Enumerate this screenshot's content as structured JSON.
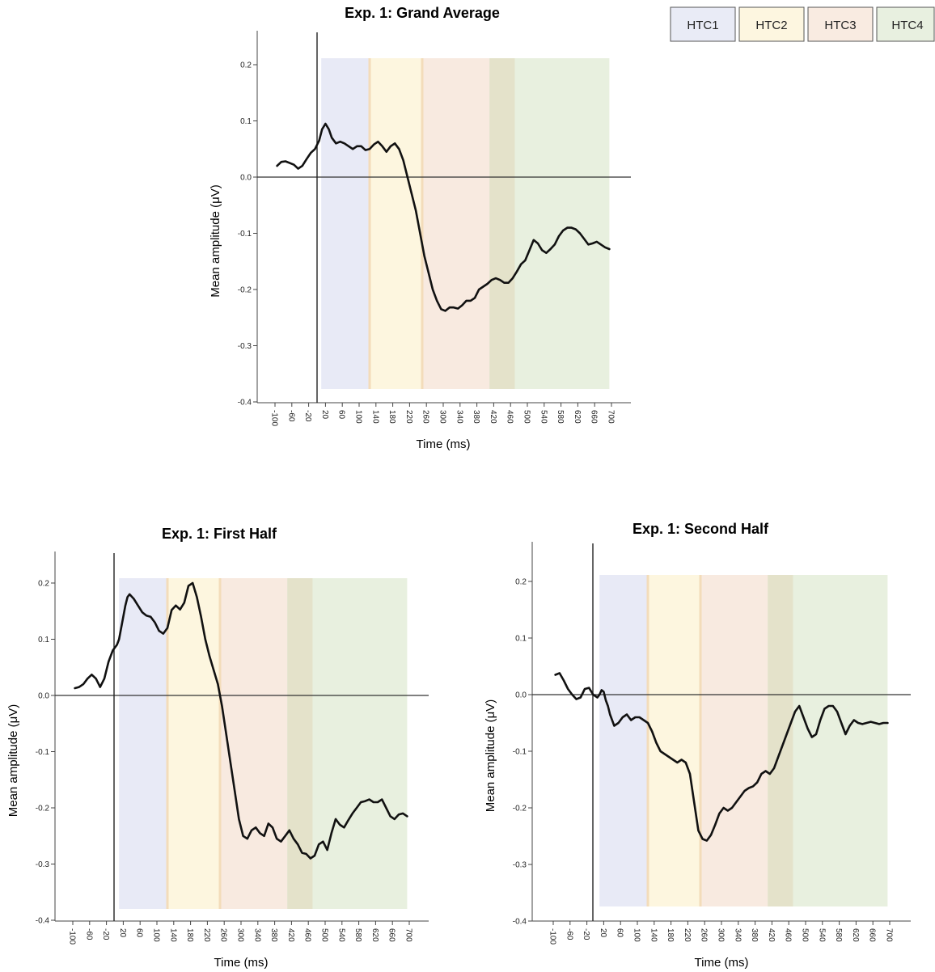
{
  "legend": [
    {
      "label": "HTC1",
      "color": "#e9ebf6"
    },
    {
      "label": "HTC2",
      "color": "#fdf6e0"
    },
    {
      "label": "HTC3",
      "color": "#f9ebe1"
    },
    {
      "label": "HTC4",
      "color": "#e8f0e0"
    }
  ],
  "colors": {
    "HTC1": "#e8eaf6",
    "HTC2": "#fdf6df",
    "HTC3": "#f8eae0",
    "HTC4": "#e8f0df",
    "overlap": "#e4e2ca",
    "boundary": "#f3dcba",
    "line": "#111111"
  },
  "chart_data": [
    {
      "type": "line",
      "title": "Exp. 1: Grand Average",
      "xlabel": "Time (ms)",
      "ylabel": "Mean amplitude (μV)",
      "xlim": [
        -100,
        700
      ],
      "ylim": [
        -0.4,
        0.2
      ],
      "x_ticks": [
        -100,
        -60,
        -20,
        20,
        60,
        100,
        140,
        180,
        220,
        260,
        300,
        340,
        380,
        420,
        460,
        500,
        540,
        580,
        620,
        660,
        700
      ],
      "y_ticks": [
        "-0.4",
        "-0.3",
        "-0.2",
        "-0.1",
        "0.0",
        "0.1",
        "0.2"
      ],
      "windows": [
        {
          "name": "HTC1",
          "start": 10,
          "end": 125
        },
        {
          "name": "HTC2",
          "start": 125,
          "end": 250
        },
        {
          "name": "HTC3",
          "start": 250,
          "end": 410
        },
        {
          "name": "HTC4",
          "start": 410,
          "end": 695
        }
      ],
      "overlap": [
        410,
        470
      ],
      "series": [
        {
          "x": [
            -95,
            -85,
            -75,
            -65,
            -55,
            -45,
            -35,
            -25,
            -15,
            -5,
            5,
            12,
            20,
            28,
            35,
            45,
            55,
            65,
            75,
            85,
            95,
            105,
            115,
            125,
            135,
            145,
            155,
            165,
            175,
            185,
            195,
            205,
            215,
            225,
            235,
            245,
            255,
            265,
            275,
            285,
            295,
            305,
            315,
            325,
            335,
            345,
            355,
            365,
            375,
            385,
            395,
            405,
            415,
            425,
            435,
            445,
            455,
            465,
            475,
            485,
            495,
            505,
            515,
            525,
            535,
            545,
            555,
            565,
            575,
            585,
            595,
            605,
            615,
            625,
            635,
            645,
            655,
            665,
            675,
            685,
            695
          ],
          "y": [
            0.02,
            0.027,
            0.028,
            0.025,
            0.022,
            0.015,
            0.02,
            0.032,
            0.043,
            0.05,
            0.065,
            0.085,
            0.095,
            0.085,
            0.07,
            0.06,
            0.063,
            0.06,
            0.055,
            0.05,
            0.055,
            0.055,
            0.048,
            0.05,
            0.058,
            0.063,
            0.055,
            0.045,
            0.055,
            0.06,
            0.05,
            0.03,
            0.0,
            -0.03,
            -0.06,
            -0.1,
            -0.14,
            -0.17,
            -0.2,
            -0.22,
            -0.235,
            -0.238,
            -0.232,
            -0.232,
            -0.234,
            -0.228,
            -0.22,
            -0.22,
            -0.215,
            -0.2,
            -0.195,
            -0.19,
            -0.183,
            -0.18,
            -0.183,
            -0.188,
            -0.188,
            -0.18,
            -0.168,
            -0.155,
            -0.148,
            -0.13,
            -0.112,
            -0.118,
            -0.13,
            -0.135,
            -0.128,
            -0.12,
            -0.105,
            -0.095,
            -0.09,
            -0.09,
            -0.093,
            -0.1,
            -0.11,
            -0.12,
            -0.118,
            -0.115,
            -0.12,
            -0.125,
            -0.128
          ]
        }
      ]
    },
    {
      "type": "line",
      "title": "Exp. 1: First Half",
      "xlabel": "Time (ms)",
      "ylabel": "Mean amplitude (μV)",
      "xlim": [
        -100,
        700
      ],
      "ylim": [
        -0.4,
        0.2
      ],
      "x_ticks": [
        -100,
        -60,
        -20,
        20,
        60,
        100,
        140,
        180,
        220,
        260,
        300,
        340,
        380,
        420,
        460,
        500,
        540,
        580,
        620,
        660,
        700
      ],
      "y_ticks": [
        "-0.4",
        "-0.3",
        "-0.2",
        "-0.1",
        "0.0",
        "0.1",
        "0.2"
      ],
      "windows": [
        {
          "name": "HTC1",
          "start": 10,
          "end": 125
        },
        {
          "name": "HTC2",
          "start": 125,
          "end": 250
        },
        {
          "name": "HTC3",
          "start": 250,
          "end": 410
        },
        {
          "name": "HTC4",
          "start": 410,
          "end": 695
        }
      ],
      "overlap": [
        410,
        470
      ],
      "series": [
        {
          "x": [
            -95,
            -85,
            -75,
            -65,
            -55,
            -45,
            -35,
            -25,
            -15,
            -5,
            5,
            10,
            15,
            20,
            25,
            30,
            35,
            45,
            55,
            65,
            75,
            85,
            95,
            105,
            115,
            125,
            135,
            145,
            155,
            165,
            175,
            185,
            195,
            205,
            215,
            225,
            235,
            245,
            255,
            265,
            275,
            285,
            295,
            305,
            315,
            325,
            335,
            345,
            355,
            365,
            375,
            385,
            395,
            405,
            415,
            425,
            435,
            445,
            455,
            465,
            475,
            485,
            495,
            505,
            515,
            525,
            535,
            545,
            555,
            565,
            575,
            585,
            595,
            605,
            615,
            625,
            635,
            645,
            655,
            665,
            675,
            685,
            695
          ],
          "y": [
            0.013,
            0.015,
            0.02,
            0.03,
            0.037,
            0.03,
            0.015,
            0.03,
            0.06,
            0.08,
            0.09,
            0.1,
            0.12,
            0.14,
            0.16,
            0.175,
            0.18,
            0.172,
            0.16,
            0.148,
            0.142,
            0.14,
            0.13,
            0.115,
            0.11,
            0.12,
            0.152,
            0.16,
            0.153,
            0.165,
            0.195,
            0.2,
            0.175,
            0.14,
            0.1,
            0.07,
            0.045,
            0.02,
            -0.02,
            -0.07,
            -0.12,
            -0.17,
            -0.22,
            -0.25,
            -0.255,
            -0.24,
            -0.235,
            -0.245,
            -0.25,
            -0.228,
            -0.235,
            -0.255,
            -0.26,
            -0.25,
            -0.24,
            -0.255,
            -0.265,
            -0.28,
            -0.282,
            -0.29,
            -0.285,
            -0.265,
            -0.26,
            -0.275,
            -0.245,
            -0.22,
            -0.23,
            -0.235,
            -0.222,
            -0.21,
            -0.2,
            -0.19,
            -0.188,
            -0.185,
            -0.19,
            -0.19,
            -0.185,
            -0.2,
            -0.215,
            -0.22,
            -0.212,
            -0.21,
            -0.215
          ]
        }
      ]
    },
    {
      "type": "line",
      "title": "Exp. 1: Second Half",
      "xlabel": "Time (ms)",
      "ylabel": "Mean amplitude (μV)",
      "xlim": [
        -100,
        700
      ],
      "ylim": [
        -0.4,
        0.2
      ],
      "x_ticks": [
        -100,
        -60,
        -20,
        20,
        60,
        100,
        140,
        180,
        220,
        260,
        300,
        340,
        380,
        420,
        460,
        500,
        540,
        580,
        620,
        660,
        700
      ],
      "y_ticks": [
        "-0.4",
        "-0.3",
        "-0.2",
        "-0.1",
        "0.0",
        "0.1",
        "0.2"
      ],
      "windows": [
        {
          "name": "HTC1",
          "start": 10,
          "end": 125
        },
        {
          "name": "HTC2",
          "start": 125,
          "end": 250
        },
        {
          "name": "HTC3",
          "start": 250,
          "end": 410
        },
        {
          "name": "HTC4",
          "start": 410,
          "end": 695
        }
      ],
      "overlap": [
        410,
        470
      ],
      "series": [
        {
          "x": [
            -95,
            -85,
            -75,
            -65,
            -55,
            -45,
            -35,
            -25,
            -15,
            -5,
            5,
            10,
            15,
            20,
            25,
            30,
            35,
            45,
            55,
            65,
            75,
            85,
            95,
            105,
            115,
            125,
            135,
            145,
            155,
            165,
            175,
            185,
            195,
            205,
            215,
            225,
            235,
            245,
            255,
            265,
            275,
            285,
            295,
            305,
            315,
            325,
            335,
            345,
            355,
            365,
            375,
            385,
            395,
            405,
            415,
            425,
            435,
            445,
            455,
            465,
            475,
            485,
            495,
            505,
            515,
            525,
            535,
            545,
            555,
            565,
            575,
            585,
            595,
            605,
            615,
            625,
            635,
            645,
            655,
            665,
            675,
            685,
            695
          ],
          "y": [
            0.035,
            0.038,
            0.025,
            0.01,
            0.0,
            -0.008,
            -0.005,
            0.01,
            0.012,
            0.0,
            -0.005,
            0.0,
            0.008,
            0.005,
            -0.01,
            -0.02,
            -0.035,
            -0.055,
            -0.05,
            -0.04,
            -0.035,
            -0.045,
            -0.04,
            -0.04,
            -0.045,
            -0.05,
            -0.065,
            -0.085,
            -0.1,
            -0.105,
            -0.11,
            -0.115,
            -0.12,
            -0.115,
            -0.12,
            -0.14,
            -0.19,
            -0.24,
            -0.255,
            -0.258,
            -0.248,
            -0.23,
            -0.21,
            -0.2,
            -0.205,
            -0.2,
            -0.19,
            -0.18,
            -0.17,
            -0.165,
            -0.162,
            -0.155,
            -0.14,
            -0.135,
            -0.14,
            -0.13,
            -0.11,
            -0.09,
            -0.07,
            -0.05,
            -0.03,
            -0.02,
            -0.04,
            -0.06,
            -0.075,
            -0.07,
            -0.045,
            -0.025,
            -0.02,
            -0.02,
            -0.03,
            -0.05,
            -0.07,
            -0.055,
            -0.045,
            -0.05,
            -0.052,
            -0.05,
            -0.048,
            -0.05,
            -0.052,
            -0.05,
            -0.05
          ]
        }
      ]
    }
  ]
}
